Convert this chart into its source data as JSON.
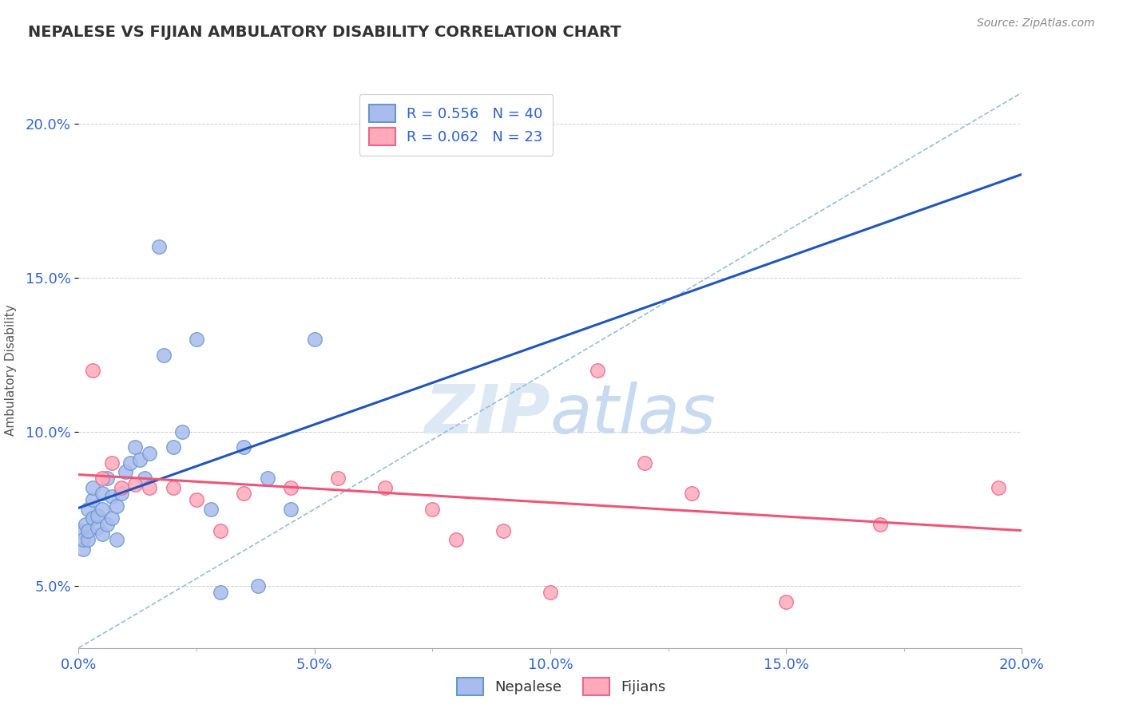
{
  "title": "NEPALESE VS FIJIAN AMBULATORY DISABILITY CORRELATION CHART",
  "source": "Source: ZipAtlas.com",
  "ylabel": "Ambulatory Disability",
  "r_nepalese": 0.556,
  "n_nepalese": 40,
  "r_fijians": 0.062,
  "n_fijians": 23,
  "xlim": [
    0.0,
    0.2
  ],
  "ylim": [
    0.03,
    0.21
  ],
  "yticks": [
    0.05,
    0.1,
    0.15,
    0.2
  ],
  "xticks": [
    0.0,
    0.05,
    0.1,
    0.15,
    0.2
  ],
  "nepalese_x": [
    0.0005,
    0.001,
    0.001,
    0.0015,
    0.002,
    0.002,
    0.002,
    0.003,
    0.003,
    0.003,
    0.004,
    0.004,
    0.005,
    0.005,
    0.005,
    0.006,
    0.006,
    0.007,
    0.007,
    0.008,
    0.008,
    0.009,
    0.01,
    0.011,
    0.012,
    0.013,
    0.014,
    0.015,
    0.017,
    0.018,
    0.02,
    0.022,
    0.025,
    0.028,
    0.03,
    0.035,
    0.038,
    0.04,
    0.045,
    0.05
  ],
  "nepalese_y": [
    0.068,
    0.062,
    0.065,
    0.07,
    0.065,
    0.068,
    0.075,
    0.072,
    0.078,
    0.082,
    0.069,
    0.073,
    0.067,
    0.075,
    0.08,
    0.07,
    0.085,
    0.072,
    0.079,
    0.065,
    0.076,
    0.08,
    0.087,
    0.09,
    0.095,
    0.091,
    0.085,
    0.093,
    0.16,
    0.125,
    0.095,
    0.1,
    0.13,
    0.075,
    0.048,
    0.095,
    0.05,
    0.085,
    0.075,
    0.13
  ],
  "fijians_x": [
    0.003,
    0.005,
    0.007,
    0.009,
    0.012,
    0.015,
    0.02,
    0.025,
    0.03,
    0.035,
    0.045,
    0.055,
    0.065,
    0.075,
    0.08,
    0.09,
    0.1,
    0.11,
    0.12,
    0.13,
    0.15,
    0.17,
    0.195
  ],
  "fijians_y": [
    0.12,
    0.085,
    0.09,
    0.082,
    0.083,
    0.082,
    0.082,
    0.078,
    0.068,
    0.08,
    0.082,
    0.085,
    0.082,
    0.075,
    0.065,
    0.068,
    0.048,
    0.12,
    0.09,
    0.08,
    0.045,
    0.07,
    0.082
  ],
  "color_nepalese_fill": "#aabbee",
  "color_nepalese_edge": "#6699cc",
  "color_fijians_fill": "#ffaabb",
  "color_fijians_edge": "#ee6688",
  "color_nepalese_line": "#2255bb",
  "color_fijians_line": "#ee5577",
  "color_diagonal": "#99bbdd",
  "background": "#ffffff",
  "grid_color": "#cccccc"
}
